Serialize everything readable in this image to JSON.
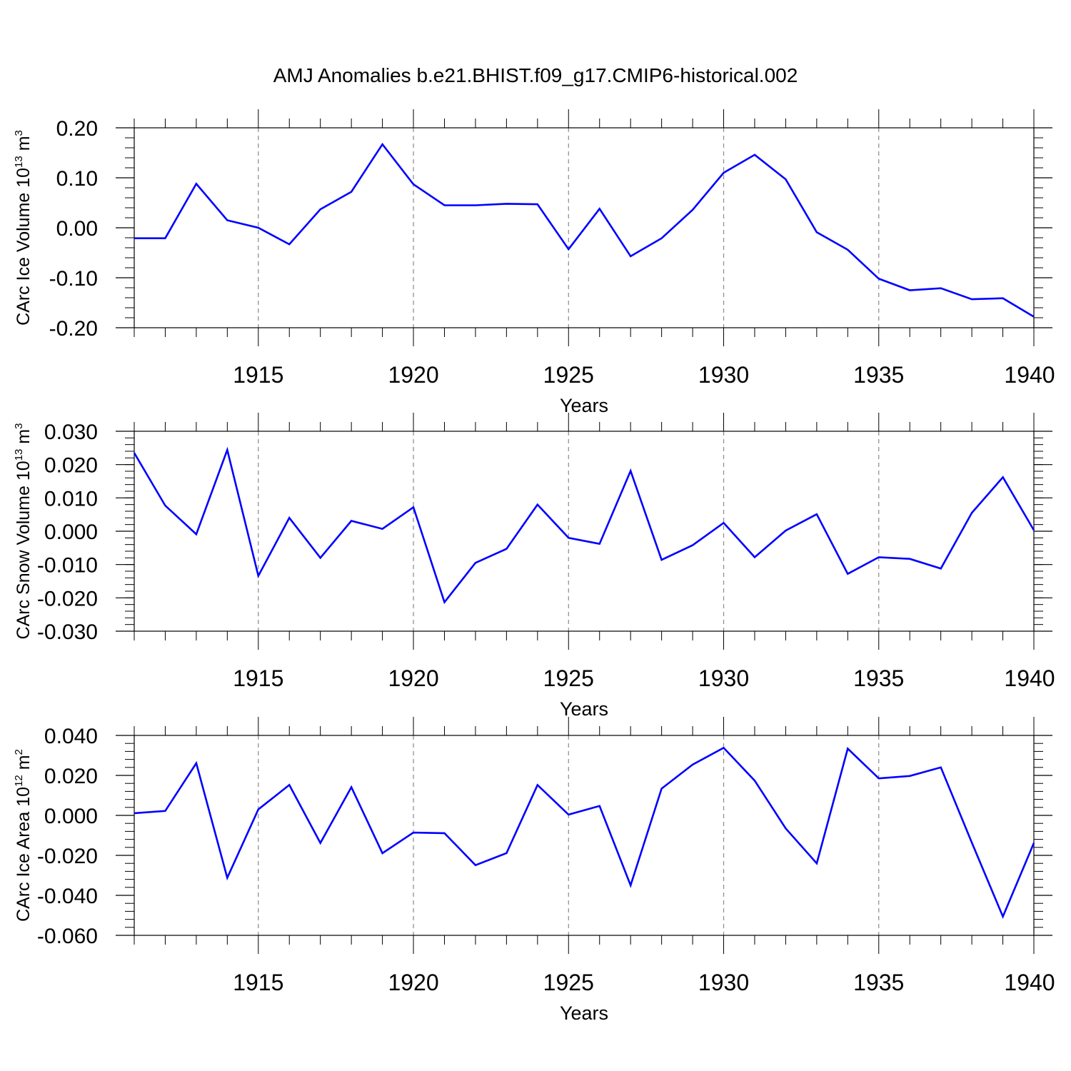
{
  "chart_data": {
    "type": "line",
    "title": "AMJ Anomalies b.e21.BHIST.f09_g17.CMIP6-historical.002",
    "x": [
      1911,
      1912,
      1913,
      1914,
      1915,
      1916,
      1917,
      1918,
      1919,
      1920,
      1921,
      1922,
      1923,
      1924,
      1925,
      1926,
      1927,
      1928,
      1929,
      1930,
      1931,
      1932,
      1933,
      1934,
      1935,
      1936,
      1937,
      1938,
      1939,
      1940
    ],
    "xlim": [
      1911,
      1940
    ],
    "x_ticks": [
      1915,
      1920,
      1925,
      1930,
      1935,
      1940
    ],
    "x_tick_labels": [
      "1915",
      "1920",
      "1925",
      "1930",
      "1935",
      "1940"
    ],
    "xlabel": "Years",
    "grid": "dashed vertical lines at labeled years",
    "line_color": "#0000ff",
    "panels": [
      {
        "ylabel": {
          "main": "CArc Ice Volume 10",
          "sup1": "13",
          "mid": " m",
          "sup2": "3"
        },
        "ylim": [
          -0.2,
          0.2
        ],
        "y_ticks": [
          0.2,
          0.1,
          0.0,
          -0.1,
          -0.2
        ],
        "y_tick_labels": [
          "0.20",
          "0.10",
          "0.00",
          "-0.10",
          "-0.20"
        ],
        "minor_step": 0.02,
        "series": [
          {
            "name": "CArc Ice Volume",
            "values": [
              -0.021,
              -0.021,
              0.088,
              0.015,
              0.0,
              -0.033,
              0.037,
              0.072,
              0.167,
              0.087,
              0.045,
              0.045,
              0.048,
              0.047,
              -0.043,
              0.038,
              -0.057,
              -0.021,
              0.036,
              0.11,
              0.146,
              0.097,
              -0.009,
              -0.044,
              -0.102,
              -0.125,
              -0.121,
              -0.143,
              -0.141,
              -0.178
            ]
          }
        ]
      },
      {
        "ylabel": {
          "main": "CArc Snow Volume 10",
          "sup1": "13",
          "mid": " m",
          "sup2": "3"
        },
        "ylim": [
          -0.03,
          0.03
        ],
        "y_ticks": [
          0.03,
          0.02,
          0.01,
          0.0,
          -0.01,
          -0.02,
          -0.03
        ],
        "y_tick_labels": [
          "0.030",
          "0.020",
          "0.010",
          "0.000",
          "-0.010",
          "-0.020",
          "-0.030"
        ],
        "minor_step": 0.002,
        "series": [
          {
            "name": "CArc Snow Volume",
            "values": [
              0.0235,
              0.0077,
              -0.0009,
              0.0244,
              -0.0134,
              0.004,
              -0.008,
              0.0031,
              0.0007,
              0.0072,
              -0.0213,
              -0.0095,
              -0.0053,
              0.008,
              -0.002,
              -0.0038,
              0.0181,
              -0.0086,
              -0.0042,
              0.0025,
              -0.0078,
              0.0002,
              0.0051,
              -0.0128,
              -0.0078,
              -0.0083,
              -0.0112,
              0.0055,
              0.0162,
              0.0003
            ]
          }
        ]
      },
      {
        "ylabel": {
          "main": "CArc Ice Area 10",
          "sup1": "12",
          "mid": " m",
          "sup2": "2"
        },
        "ylim": [
          -0.06,
          0.04
        ],
        "y_ticks": [
          0.04,
          0.02,
          0.0,
          -0.02,
          -0.04,
          -0.06
        ],
        "y_tick_labels": [
          "0.040",
          "0.020",
          "0.000",
          "-0.020",
          "-0.040",
          "-0.060"
        ],
        "minor_step": 0.004,
        "series": [
          {
            "name": "CArc Ice Area",
            "values": [
              0.0011,
              0.0022,
              0.0261,
              -0.0312,
              0.003,
              0.0152,
              -0.0138,
              0.0141,
              -0.0189,
              -0.0086,
              -0.0089,
              -0.0249,
              -0.0189,
              0.0152,
              0.0004,
              0.0047,
              -0.035,
              0.0134,
              0.0254,
              0.0338,
              0.0174,
              -0.0065,
              -0.024,
              0.0334,
              0.0185,
              0.0197,
              0.024,
              -0.0136,
              -0.0506,
              -0.0138
            ]
          }
        ]
      }
    ]
  }
}
